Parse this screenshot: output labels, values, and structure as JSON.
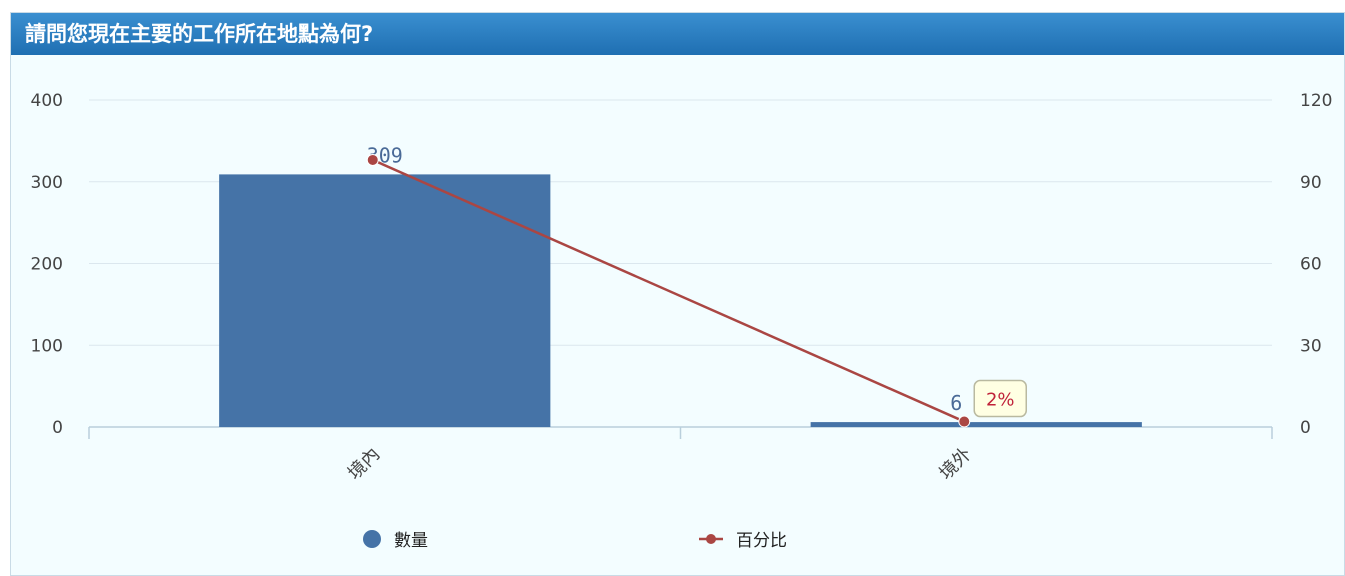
{
  "panel": {
    "title": "請問您現在主要的工作所在地點為何?"
  },
  "chart_data": {
    "type": "bar",
    "title": "請問您現在主要的工作所在地點為何?",
    "categories": [
      "境內",
      "境外"
    ],
    "series": [
      {
        "name": "數量",
        "type": "bar",
        "axis": "left",
        "values": [
          309,
          6
        ],
        "color": "#4573a7"
      },
      {
        "name": "百分比",
        "type": "line",
        "axis": "right",
        "values": [
          98,
          2
        ],
        "color": "#aa4643"
      }
    ],
    "y_left": {
      "min": 0,
      "max": 400,
      "ticks": [
        "0",
        "100",
        "200",
        "300",
        "400"
      ]
    },
    "y_right": {
      "min": 0,
      "max": 120,
      "ticks": [
        "0",
        "30",
        "60",
        "90",
        "120"
      ]
    },
    "data_labels": [
      "309",
      "6"
    ],
    "tooltip": {
      "category": "境外",
      "text": "2%"
    },
    "grid": true,
    "legend_position": "bottom"
  }
}
